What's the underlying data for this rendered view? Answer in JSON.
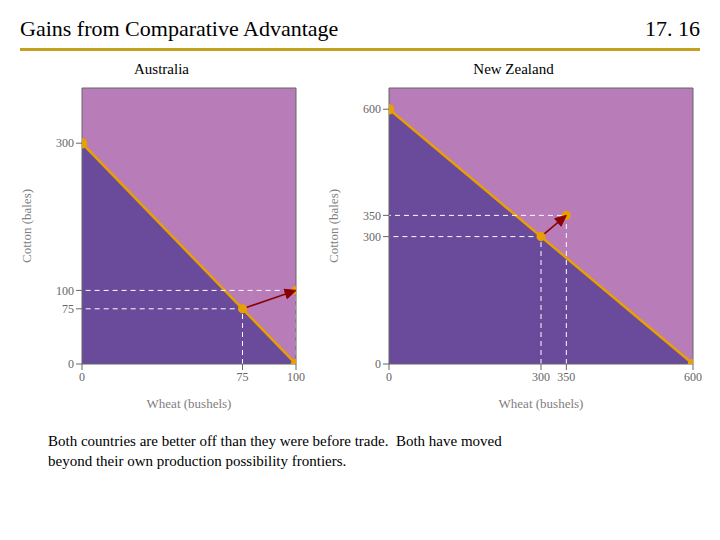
{
  "title": "Gains from Comparative Advantage",
  "annotations": [
    "17. 16"
  ],
  "subtitle": "Both countries are better off than they were before trade.  Both have moved\nbeyond their own production possibility frontiers.",
  "color": "#C8A020",
  "chart_data": [
    {
      "type": "line",
      "title": "Australia",
      "x_label": "Wheat (bushels)",
      "y_label": "Cotton (bales)",
      "xlim": [
        0,
        100
      ],
      "ylim": [
        0,
        375
      ],
      "xticks": [
        0,
        75,
        100
      ],
      "yticks": [
        0,
        75,
        100,
        300
      ],
      "grid": false,
      "series": [
        {
          "type": "area",
          "color": "#B87CB8",
          "x": [
            0,
            100
          ],
          "values": [
            375,
            375
          ]
        },
        {
          "type": "area",
          "color": "#6A4A9A",
          "x": [
            0,
            100
          ],
          "values": [
            300,
            0
          ]
        },
        {
          "type": "line",
          "color": "#E8A000",
          "marker": "circle",
          "line_style": "solid",
          "x": [
            0,
            100
          ],
          "values": [
            300,
            0
          ]
        },
        {
          "type": "line",
          "color": "white",
          "line_style": "dashed",
          "x": [
            75,
            75,
            0
          ],
          "values": [
            0,
            75,
            75
          ]
        },
        {
          "type": "line",
          "color": "white",
          "line_style": "dashed",
          "x": [
            100,
            100,
            0
          ],
          "values": [
            0,
            100,
            100
          ]
        },
        {
          "type": "scatter",
          "color": "#E8A000",
          "marker": "circle",
          "x": [
            75,
            100
          ],
          "values": [
            75,
            100
          ]
        },
        {
          "type": "arrow",
          "color": "#8B0000",
          "x": [
            75,
            100
          ],
          "values": [
            75,
            100
          ]
        }
      ]
    },
    {
      "type": "line",
      "title": "New Zealand",
      "x_label": "Wheat (bushels)",
      "y_label": "Cotton (bales)",
      "xlim": [
        0,
        600
      ],
      "ylim": [
        0,
        650
      ],
      "xticks": [
        0,
        300,
        350,
        600
      ],
      "yticks": [
        0,
        300,
        350,
        600
      ],
      "grid": false,
      "series": [
        {
          "type": "area",
          "color": "#B87CB8",
          "x": [
            0,
            600
          ],
          "values": [
            650,
            650
          ]
        },
        {
          "type": "area",
          "color": "#6A4A9A",
          "x": [
            0,
            600
          ],
          "values": [
            600,
            0
          ]
        },
        {
          "type": "line",
          "color": "#E8A000",
          "marker": "circle",
          "line_style": "solid",
          "x": [
            0,
            600
          ],
          "values": [
            600,
            0
          ]
        },
        {
          "type": "line",
          "color": "white",
          "line_style": "dashed",
          "x": [
            300,
            300,
            0
          ],
          "values": [
            0,
            300,
            300
          ]
        },
        {
          "type": "line",
          "color": "white",
          "line_style": "dashed",
          "x": [
            350,
            350,
            0
          ],
          "values": [
            0,
            350,
            350
          ]
        },
        {
          "type": "scatter",
          "color": "#E8A000",
          "marker": "circle",
          "x": [
            300,
            350
          ],
          "values": [
            300,
            350
          ]
        },
        {
          "type": "arrow",
          "color": "#8B0000",
          "x": [
            300,
            350
          ],
          "values": [
            300,
            350
          ]
        }
      ]
    }
  ]
}
